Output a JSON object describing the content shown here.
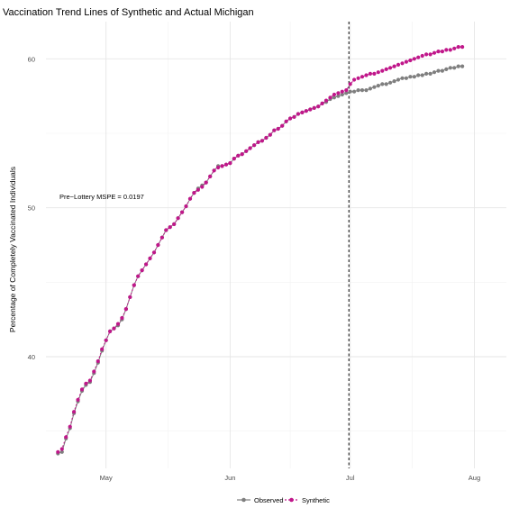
{
  "chart_data": {
    "type": "line",
    "title": "Vaccination Trend Lines of Synthetic and Actual Michigan",
    "xlabel": "",
    "ylabel": "Percentage of Completely Vaccinated Individuals",
    "x_tick_labels": [
      "May",
      "Jun",
      "Jul",
      "Aug"
    ],
    "y_ticks": [
      40,
      50,
      60
    ],
    "ylim": [
      32.5,
      62.5
    ],
    "xlim": [
      "2021-04-16",
      "2021-08-09"
    ],
    "grid": true,
    "legend_position": "bottom",
    "intervention_date": "2021-07-01",
    "annotation": "Pre−Lottery MSPE = 0.0197",
    "colors": {
      "observed": "#7f7f7f",
      "synthetic": "#c0178a"
    },
    "series": [
      {
        "name": "Observed",
        "start_date": "2021-04-19",
        "values": [
          33.5,
          33.6,
          34.5,
          35.2,
          36.2,
          37.0,
          37.7,
          38.1,
          38.3,
          38.9,
          39.6,
          40.4,
          41.1,
          41.7,
          41.9,
          42.1,
          42.5,
          43.2,
          44.0,
          44.8,
          45.4,
          45.8,
          46.2,
          46.6,
          47.0,
          47.5,
          48.0,
          48.5,
          48.7,
          48.9,
          49.3,
          49.7,
          50.1,
          50.6,
          51.0,
          51.3,
          51.5,
          51.7,
          52.1,
          52.5,
          52.8,
          52.8,
          52.9,
          53.0,
          53.3,
          53.5,
          53.6,
          53.8,
          54.0,
          54.2,
          54.4,
          54.5,
          54.7,
          54.9,
          55.2,
          55.3,
          55.5,
          55.8,
          56.0,
          56.1,
          56.3,
          56.4,
          56.5,
          56.6,
          56.7,
          56.8,
          57.0,
          57.1,
          57.3,
          57.4,
          57.5,
          57.6,
          57.7,
          57.8,
          57.8,
          57.9,
          57.9,
          57.9,
          58.0,
          58.1,
          58.2,
          58.3,
          58.3,
          58.4,
          58.5,
          58.6,
          58.7,
          58.7,
          58.8,
          58.8,
          58.9,
          58.9,
          59.0,
          59.0,
          59.1,
          59.2,
          59.2,
          59.3,
          59.4,
          59.4,
          59.5,
          59.5
        ]
      },
      {
        "name": "Synthetic",
        "start_date": "2021-04-19",
        "values": [
          33.6,
          33.8,
          34.6,
          35.3,
          36.3,
          37.1,
          37.8,
          38.2,
          38.4,
          39.0,
          39.7,
          40.5,
          41.1,
          41.7,
          41.9,
          42.2,
          42.6,
          43.2,
          44.0,
          44.8,
          45.4,
          45.8,
          46.2,
          46.6,
          47.0,
          47.5,
          48.0,
          48.5,
          48.7,
          48.9,
          49.3,
          49.7,
          50.1,
          50.6,
          51.0,
          51.2,
          51.4,
          51.7,
          52.1,
          52.5,
          52.7,
          52.8,
          52.9,
          53.0,
          53.3,
          53.5,
          53.6,
          53.8,
          54.0,
          54.2,
          54.4,
          54.5,
          54.7,
          54.9,
          55.2,
          55.3,
          55.5,
          55.8,
          56.0,
          56.1,
          56.3,
          56.4,
          56.5,
          56.6,
          56.7,
          56.8,
          57.0,
          57.2,
          57.4,
          57.6,
          57.7,
          57.8,
          57.9,
          58.3,
          58.6,
          58.7,
          58.8,
          58.9,
          59.0,
          59.0,
          59.1,
          59.2,
          59.3,
          59.4,
          59.5,
          59.6,
          59.7,
          59.8,
          59.9,
          60.0,
          60.1,
          60.2,
          60.3,
          60.3,
          60.4,
          60.5,
          60.5,
          60.6,
          60.6,
          60.7,
          60.8,
          60.8
        ]
      }
    ]
  }
}
